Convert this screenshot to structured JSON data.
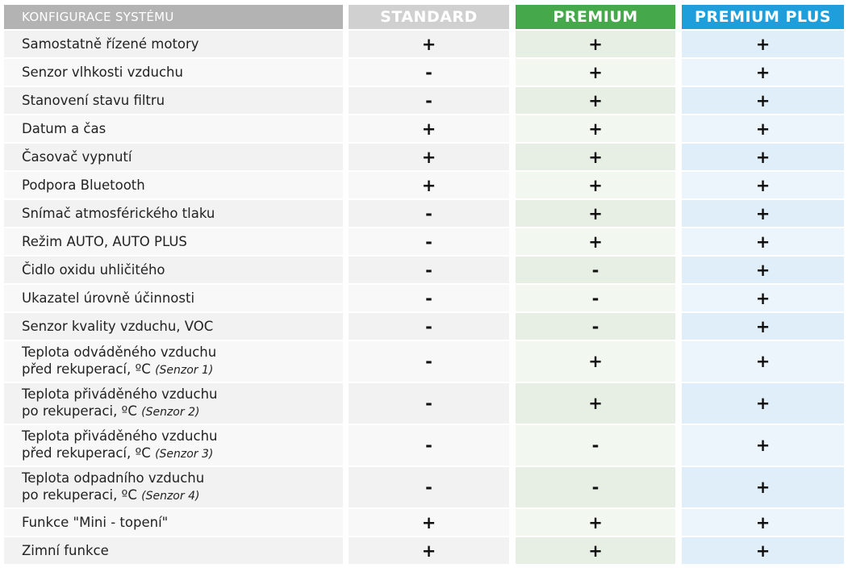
{
  "header": {
    "title": "KONFIGURACE SYSTÉMU",
    "columns": [
      "STANDARD",
      "PREMIUM",
      "PREMIUM PLUS"
    ]
  },
  "table": {
    "rows": [
      {
        "label": [
          "Samostatně řízené motory"
        ],
        "cells": [
          "+",
          "+",
          "+"
        ]
      },
      {
        "label": [
          "Senzor vlhkosti vzduchu"
        ],
        "cells": [
          "-",
          "+",
          "+"
        ]
      },
      {
        "label": [
          "Stanovení stavu filtru"
        ],
        "cells": [
          "-",
          "+",
          "+"
        ]
      },
      {
        "label": [
          "Datum a čas"
        ],
        "cells": [
          "+",
          "+",
          "+"
        ]
      },
      {
        "label": [
          "Časovač vypnutí"
        ],
        "cells": [
          "+",
          "+",
          "+"
        ]
      },
      {
        "label": [
          "Podpora Bluetooth"
        ],
        "cells": [
          "+",
          "+",
          "+"
        ]
      },
      {
        "label": [
          "Snímač atmosférického tlaku"
        ],
        "cells": [
          "-",
          "+",
          "+"
        ]
      },
      {
        "label": [
          "Režim AUTO, AUTO PLUS"
        ],
        "cells": [
          "-",
          "+",
          "+"
        ]
      },
      {
        "label": [
          "Čidlo oxidu uhličitého"
        ],
        "cells": [
          "-",
          "-",
          "+"
        ]
      },
      {
        "label": [
          "Ukazatel úrovně účinnosti"
        ],
        "cells": [
          "-",
          "-",
          "+"
        ]
      },
      {
        "label": [
          "Senzor kvality vzduchu, VOC"
        ],
        "cells": [
          "-",
          "-",
          "+"
        ]
      },
      {
        "label": [
          "Teplota odváděného vzduchu",
          "před rekuperací, ºC"
        ],
        "note": "(Senzor 1)",
        "cells": [
          "-",
          "+",
          "+"
        ]
      },
      {
        "label": [
          "Teplota přiváděného vzduchu",
          "po rekuperaci, ºC"
        ],
        "note": "(Senzor 2)",
        "cells": [
          "-",
          "+",
          "+"
        ]
      },
      {
        "label": [
          "Teplota přiváděného vzduchu",
          "před rekuperací, ºC"
        ],
        "note": "(Senzor 3)",
        "cells": [
          "-",
          "-",
          "+"
        ]
      },
      {
        "label": [
          "Teplota odpadního vzduchu",
          "po rekuperaci, ºC"
        ],
        "note": "(Senzor 4)",
        "cells": [
          "-",
          "-",
          "+"
        ]
      },
      {
        "label": [
          "Funkce \"Mini - topení\""
        ],
        "cells": [
          "+",
          "+",
          "+"
        ]
      },
      {
        "label": [
          "Zimní funkce"
        ],
        "cells": [
          "+",
          "+",
          "+"
        ]
      }
    ]
  }
}
